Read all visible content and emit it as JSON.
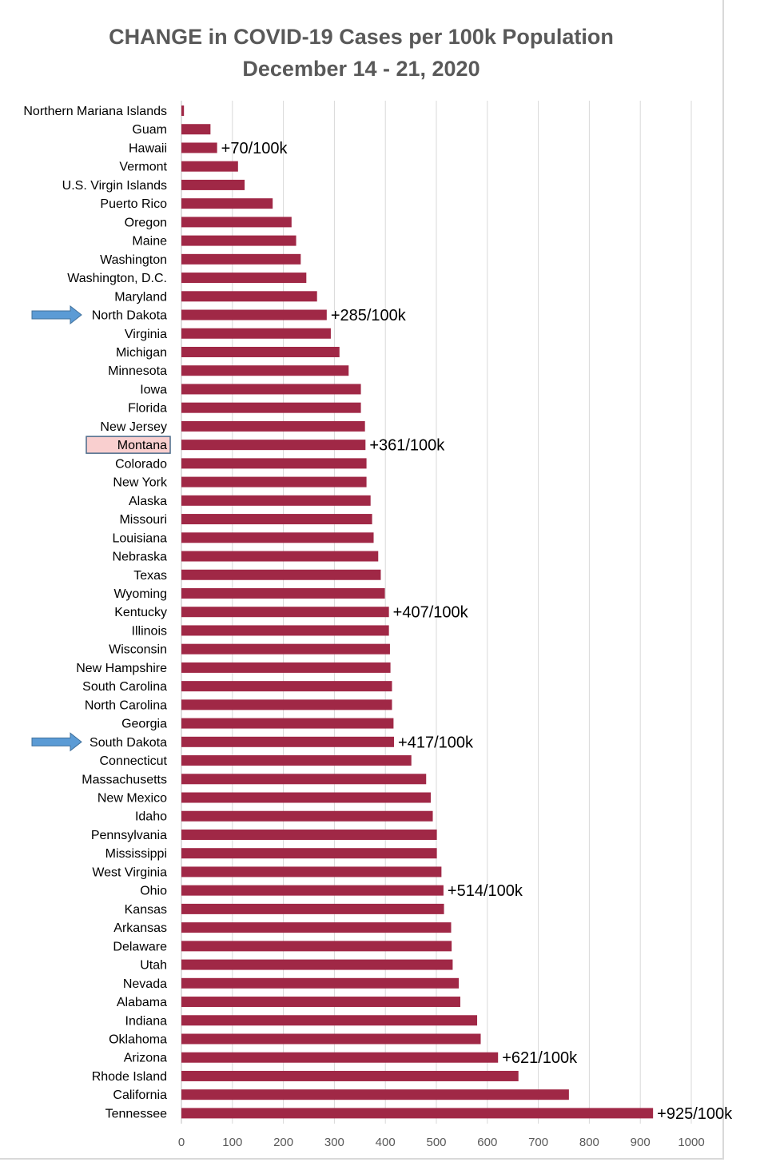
{
  "chart_data": {
    "type": "bar",
    "orientation": "horizontal",
    "title": "CHANGE in COVID-19 Cases per 100k Population",
    "subtitle": "December 14 - 21, 2020",
    "xlabel": "",
    "ylabel": "",
    "xlim": [
      0,
      1000
    ],
    "xticks": [
      0,
      100,
      200,
      300,
      400,
      500,
      600,
      700,
      800,
      900,
      1000
    ],
    "grid": true,
    "bar_color": "#A02846",
    "highlight_color": "#F9CFCF",
    "highlight_border": "#4A6A8A",
    "arrow_color": "#5B9BD5",
    "highlighted_category": "Montana",
    "arrow_categories": [
      "North Dakota",
      "South Dakota"
    ],
    "categories": [
      "Northern Mariana Islands",
      "Guam",
      "Hawaii",
      "Vermont",
      "U.S. Virgin Islands",
      "Puerto Rico",
      "Oregon",
      "Maine",
      "Washington",
      "Washington, D.C.",
      "Maryland",
      "North Dakota",
      "Virginia",
      "Michigan",
      "Minnesota",
      "Iowa",
      "Florida",
      "New Jersey",
      "Montana",
      "Colorado",
      "New York",
      "Alaska",
      "Missouri",
      "Louisiana",
      "Nebraska",
      "Texas",
      "Wyoming",
      "Kentucky",
      "Illinois",
      "Wisconsin",
      "New Hampshire",
      "South Carolina",
      "North Carolina",
      "Georgia",
      "South Dakota",
      "Connecticut",
      "Massachusetts",
      "New Mexico",
      "Idaho",
      "Pennsylvania",
      "Mississippi",
      "West Virginia",
      "Ohio",
      "Kansas",
      "Arkansas",
      "Delaware",
      "Utah",
      "Nevada",
      "Alabama",
      "Indiana",
      "Oklahoma",
      "Arizona",
      "Rhode Island",
      "California",
      "Tennessee"
    ],
    "values": [
      5,
      57,
      70,
      111,
      124,
      179,
      216,
      225,
      234,
      245,
      266,
      285,
      293,
      310,
      328,
      352,
      352,
      360,
      361,
      363,
      363,
      371,
      374,
      377,
      386,
      391,
      399,
      407,
      407,
      409,
      410,
      413,
      413,
      416,
      417,
      451,
      480,
      489,
      493,
      501,
      501,
      510,
      514,
      515,
      529,
      530,
      532,
      544,
      547,
      580,
      587,
      621,
      661,
      760,
      925
    ],
    "annotations": [
      {
        "category": "Hawaii",
        "text": "+70/100k"
      },
      {
        "category": "North Dakota",
        "text": "+285/100k"
      },
      {
        "category": "Montana",
        "text": "+361/100k"
      },
      {
        "category": "Kentucky",
        "text": "+407/100k"
      },
      {
        "category": "South Dakota",
        "text": "+417/100k"
      },
      {
        "category": "Ohio",
        "text": "+514/100k"
      },
      {
        "category": "Arizona",
        "text": "+621/100k"
      },
      {
        "category": "Tennessee",
        "text": "+925/100k"
      }
    ]
  }
}
